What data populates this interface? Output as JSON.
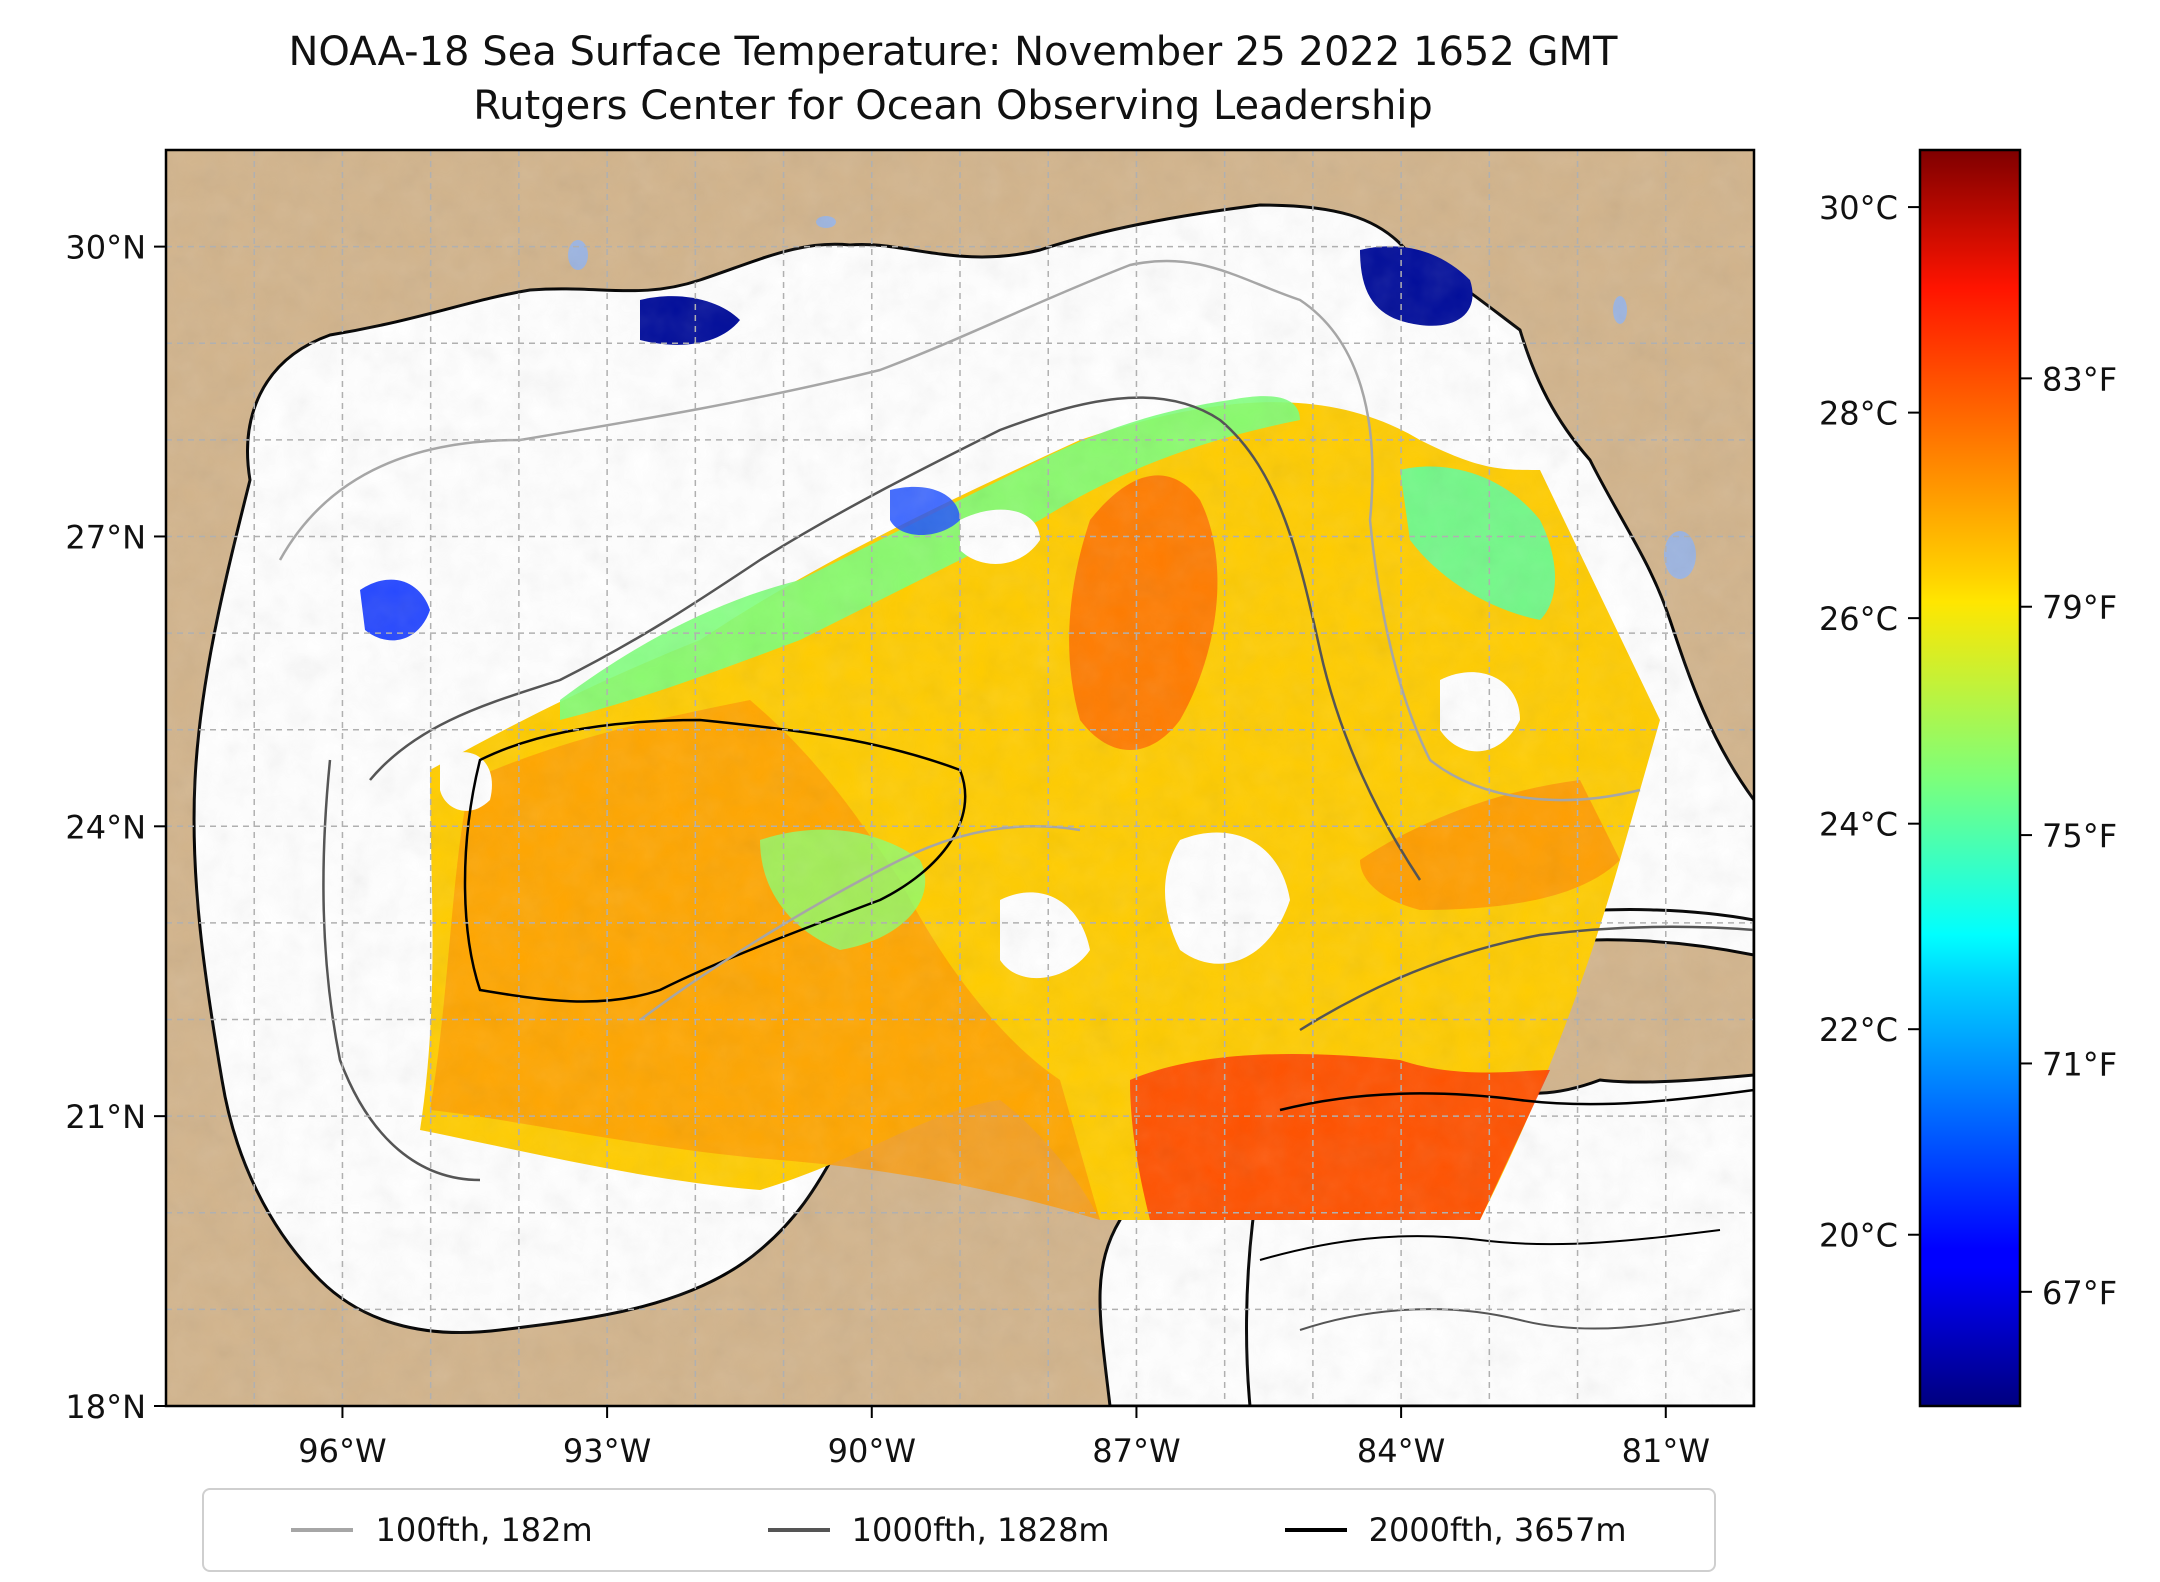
{
  "title": {
    "line1": "NOAA-18 Sea Surface Temperature: November 25 2022 1652 GMT",
    "line2": "Rutgers Center for Ocean Observing Leadership"
  },
  "map": {
    "lon_range": [
      -98,
      -80
    ],
    "lat_range": [
      18,
      31
    ],
    "x_ticks": [
      {
        "lon": -96,
        "label": "96°W"
      },
      {
        "lon": -93,
        "label": "93°W"
      },
      {
        "lon": -90,
        "label": "90°W"
      },
      {
        "lon": -87,
        "label": "87°W"
      },
      {
        "lon": -84,
        "label": "84°W"
      },
      {
        "lon": -81,
        "label": "81°W"
      }
    ],
    "y_ticks": [
      {
        "lat": 18,
        "label": "18°N"
      },
      {
        "lat": 21,
        "label": "21°N"
      },
      {
        "lat": 24,
        "label": "24°N"
      },
      {
        "lat": 27,
        "label": "27°N"
      },
      {
        "lat": 30,
        "label": "30°N"
      }
    ],
    "grid": true,
    "colors": {
      "land": "#d2b48c",
      "lakes": "#9cb4e0",
      "no_data": "#ffffff"
    }
  },
  "colorbar": {
    "colormap": "jet",
    "celsius_ticks": [
      {
        "c": 30,
        "label": "30°C"
      },
      {
        "c": 28,
        "label": "28°C"
      },
      {
        "c": 26,
        "label": "26°C"
      },
      {
        "c": 24,
        "label": "24°C"
      },
      {
        "c": 22,
        "label": "22°C"
      },
      {
        "c": 20,
        "label": "20°C"
      }
    ],
    "fahrenheit_ticks": [
      {
        "f": 83,
        "label": "83°F"
      },
      {
        "f": 79,
        "label": "79°F"
      },
      {
        "f": 75,
        "label": "75°F"
      },
      {
        "f": 71,
        "label": "71°F"
      },
      {
        "f": 67,
        "label": "67°F"
      }
    ],
    "range_f": [
      65,
      87
    ]
  },
  "legend": [
    {
      "label": "100fth, 182m",
      "color": "#a6a6a6"
    },
    {
      "label": "1000fth, 1828m",
      "color": "#555555"
    },
    {
      "label": "2000fth, 3657m",
      "color": "#000000"
    }
  ]
}
